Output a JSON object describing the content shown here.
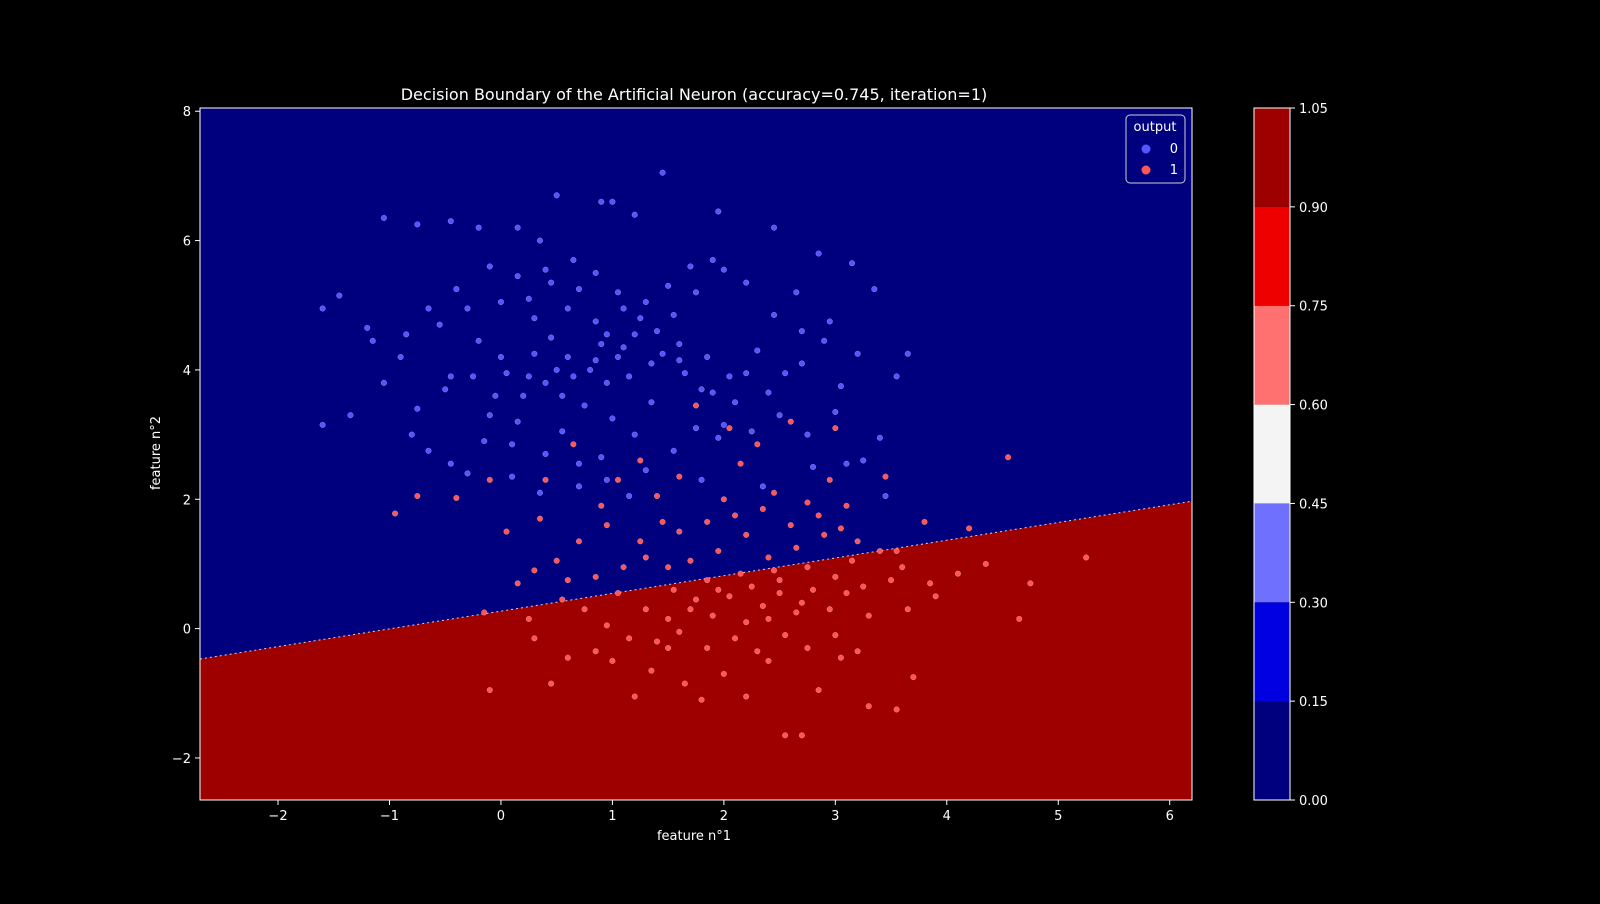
{
  "chart_data": {
    "type": "scatter",
    "title": "Decision Boundary of the Artificial Neuron (accuracy=0.745, iteration=1)",
    "xlabel": "feature n°1",
    "ylabel": "feature n°2",
    "xlim": [
      -2.7,
      6.2
    ],
    "ylim": [
      -2.65,
      8.05
    ],
    "xticks": [
      -2,
      -1,
      0,
      1,
      2,
      3,
      4,
      5,
      6
    ],
    "yticks": [
      -2,
      0,
      2,
      4,
      6,
      8
    ],
    "tick_labels_x": [
      "−2",
      "−1",
      "0",
      "1",
      "2",
      "3",
      "4",
      "5",
      "6"
    ],
    "tick_labels_y": [
      "−2",
      "0",
      "2",
      "4",
      "6",
      "8"
    ],
    "grid": false,
    "background": "#000000",
    "decision_boundary": {
      "line": [
        [
          -2.7,
          -0.47
        ],
        [
          6.2,
          1.97
        ]
      ],
      "region_above_color": "#00007f",
      "region_below_color": "#9e0000"
    },
    "legend": {
      "title": "output",
      "position": "top-right",
      "entries": [
        {
          "label": "0",
          "color": "#5555ff"
        },
        {
          "label": "1",
          "color": "#ff5555"
        }
      ]
    },
    "colorbar": {
      "levels": [
        0.0,
        0.15,
        0.3,
        0.45,
        0.6,
        0.75,
        0.9,
        1.05
      ],
      "tick_labels": [
        "0.00",
        "0.15",
        "0.30",
        "0.45",
        "0.60",
        "0.75",
        "0.90",
        "1.05"
      ],
      "colors": [
        "#00007f",
        "#0000e0",
        "#7070ff",
        "#f4f4f4",
        "#ff7070",
        "#ee0000",
        "#9e0000"
      ]
    },
    "series": [
      {
        "name": "0",
        "color": "#5555ff",
        "points": [
          [
            -1.6,
            4.95
          ],
          [
            -1.45,
            5.15
          ],
          [
            -1.2,
            4.65
          ],
          [
            -1.05,
            6.35
          ],
          [
            -0.75,
            6.25
          ],
          [
            -0.45,
            6.3
          ],
          [
            -0.2,
            6.2
          ],
          [
            0.15,
            6.2
          ],
          [
            0.35,
            6.0
          ],
          [
            0.5,
            6.7
          ],
          [
            0.9,
            6.6
          ],
          [
            1.0,
            6.6
          ],
          [
            1.2,
            6.4
          ],
          [
            1.45,
            7.05
          ],
          [
            1.95,
            6.45
          ],
          [
            2.45,
            6.2
          ],
          [
            2.85,
            5.8
          ],
          [
            3.15,
            5.65
          ],
          [
            3.35,
            5.25
          ],
          [
            3.65,
            4.25
          ],
          [
            3.55,
            3.9
          ],
          [
            3.05,
            3.75
          ],
          [
            2.7,
            4.1
          ],
          [
            2.2,
            3.95
          ],
          [
            1.8,
            3.7
          ],
          [
            1.35,
            3.5
          ],
          [
            1.2,
            3.0
          ],
          [
            0.9,
            2.65
          ],
          [
            0.55,
            3.05
          ],
          [
            0.1,
            2.85
          ],
          [
            -0.1,
            3.3
          ],
          [
            -0.5,
            3.7
          ],
          [
            -0.75,
            3.4
          ],
          [
            -1.05,
            3.8
          ],
          [
            -1.35,
            3.3
          ],
          [
            -1.6,
            3.15
          ],
          [
            -0.85,
            4.55
          ],
          [
            -0.55,
            4.7
          ],
          [
            -0.3,
            4.95
          ],
          [
            0.0,
            5.05
          ],
          [
            0.25,
            5.1
          ],
          [
            0.45,
            5.35
          ],
          [
            0.65,
            5.7
          ],
          [
            0.85,
            5.5
          ],
          [
            1.05,
            5.2
          ],
          [
            1.3,
            5.05
          ],
          [
            1.55,
            4.85
          ],
          [
            1.75,
            5.2
          ],
          [
            2.0,
            5.55
          ],
          [
            2.2,
            5.35
          ],
          [
            2.45,
            4.85
          ],
          [
            2.7,
            4.6
          ],
          [
            2.9,
            4.45
          ],
          [
            3.2,
            4.25
          ],
          [
            3.0,
            3.35
          ],
          [
            2.75,
            3.0
          ],
          [
            2.5,
            3.3
          ],
          [
            2.25,
            3.05
          ],
          [
            1.95,
            2.95
          ],
          [
            1.55,
            2.75
          ],
          [
            1.3,
            2.45
          ],
          [
            0.95,
            2.3
          ],
          [
            0.7,
            2.2
          ],
          [
            0.35,
            2.1
          ],
          [
            0.1,
            2.35
          ],
          [
            -0.3,
            2.4
          ],
          [
            -0.65,
            2.75
          ],
          [
            -0.25,
            3.9
          ],
          [
            0.05,
            3.95
          ],
          [
            0.3,
            4.25
          ],
          [
            0.45,
            4.5
          ],
          [
            0.6,
            4.2
          ],
          [
            0.8,
            4.0
          ],
          [
            0.95,
            4.55
          ],
          [
            1.1,
            4.35
          ],
          [
            1.25,
            4.8
          ],
          [
            1.4,
            4.6
          ],
          [
            1.6,
            4.4
          ],
          [
            1.85,
            4.2
          ],
          [
            2.05,
            3.9
          ],
          [
            2.3,
            4.3
          ],
          [
            0.4,
            3.8
          ],
          [
            0.55,
            3.6
          ],
          [
            0.75,
            3.45
          ],
          [
            0.95,
            3.8
          ],
          [
            1.15,
            3.9
          ],
          [
            1.35,
            4.1
          ],
          [
            1.65,
            3.95
          ],
          [
            1.9,
            3.65
          ],
          [
            2.1,
            3.5
          ],
          [
            0.2,
            3.6
          ],
          [
            0.0,
            4.2
          ],
          [
            -0.2,
            4.45
          ],
          [
            0.3,
            4.8
          ],
          [
            0.6,
            4.95
          ],
          [
            0.85,
            4.75
          ],
          [
            1.1,
            4.95
          ],
          [
            1.5,
            5.3
          ],
          [
            1.7,
            5.6
          ],
          [
            1.9,
            5.7
          ],
          [
            0.7,
            5.25
          ],
          [
            0.4,
            5.55
          ],
          [
            0.15,
            5.45
          ],
          [
            -0.1,
            5.6
          ],
          [
            -0.4,
            5.25
          ],
          [
            -0.65,
            4.95
          ],
          [
            -0.9,
            4.2
          ],
          [
            -1.15,
            4.45
          ],
          [
            -0.45,
            3.9
          ],
          [
            -0.05,
            3.6
          ],
          [
            1.2,
            4.55
          ],
          [
            1.05,
            4.2
          ],
          [
            0.9,
            4.4
          ],
          [
            0.5,
            4.0
          ],
          [
            0.25,
            3.9
          ],
          [
            1.45,
            4.25
          ],
          [
            1.6,
            4.15
          ],
          [
            2.55,
            3.95
          ],
          [
            2.4,
            3.65
          ],
          [
            2.65,
            5.2
          ],
          [
            2.95,
            4.75
          ],
          [
            3.4,
            2.95
          ],
          [
            3.25,
            2.6
          ],
          [
            3.45,
            2.05
          ],
          [
            3.1,
            2.55
          ],
          [
            2.8,
            2.5
          ],
          [
            2.35,
            2.2
          ],
          [
            1.8,
            2.3
          ],
          [
            1.15,
            2.05
          ],
          [
            0.7,
            2.55
          ],
          [
            0.4,
            2.7
          ],
          [
            0.15,
            3.2
          ],
          [
            -0.15,
            2.9
          ],
          [
            -0.45,
            2.55
          ],
          [
            -0.8,
            3.0
          ],
          [
            1.75,
            3.1
          ],
          [
            2.0,
            3.15
          ],
          [
            1.0,
            3.25
          ],
          [
            0.65,
            3.9
          ],
          [
            0.85,
            4.15
          ]
        ]
      },
      {
        "name": "1",
        "color": "#ff5555",
        "points": [
          [
            -0.95,
            1.78
          ],
          [
            -0.75,
            2.05
          ],
          [
            -0.4,
            2.02
          ],
          [
            -0.1,
            2.3
          ],
          [
            0.05,
            1.5
          ],
          [
            0.35,
            1.7
          ],
          [
            0.4,
            2.3
          ],
          [
            0.65,
            2.85
          ],
          [
            0.9,
            1.9
          ],
          [
            1.05,
            2.3
          ],
          [
            1.25,
            2.6
          ],
          [
            1.45,
            1.65
          ],
          [
            1.6,
            2.35
          ],
          [
            1.75,
            3.45
          ],
          [
            2.05,
            3.1
          ],
          [
            2.15,
            2.55
          ],
          [
            2.3,
            2.85
          ],
          [
            2.45,
            2.1
          ],
          [
            2.6,
            3.2
          ],
          [
            2.75,
            1.95
          ],
          [
            2.95,
            2.3
          ],
          [
            3.0,
            3.1
          ],
          [
            3.2,
            1.35
          ],
          [
            3.45,
            2.35
          ],
          [
            3.55,
            1.2
          ],
          [
            3.8,
            1.65
          ],
          [
            4.2,
            1.55
          ],
          [
            4.55,
            2.65
          ],
          [
            3.05,
            1.55
          ],
          [
            2.9,
            1.45
          ],
          [
            2.65,
            1.25
          ],
          [
            2.4,
            1.1
          ],
          [
            2.2,
            1.45
          ],
          [
            1.95,
            1.2
          ],
          [
            1.7,
            1.05
          ],
          [
            1.5,
            0.95
          ],
          [
            1.3,
            1.1
          ],
          [
            1.1,
            0.95
          ],
          [
            0.85,
            0.8
          ],
          [
            0.6,
            0.75
          ],
          [
            0.3,
            0.9
          ],
          [
            0.15,
            0.7
          ],
          [
            -0.15,
            0.25
          ],
          [
            -0.1,
            -0.95
          ],
          [
            0.3,
            -0.15
          ],
          [
            0.45,
            -0.85
          ],
          [
            0.6,
            -0.45
          ],
          [
            0.85,
            -0.35
          ],
          [
            1.0,
            -0.5
          ],
          [
            1.2,
            -1.05
          ],
          [
            1.35,
            -0.65
          ],
          [
            1.5,
            -0.3
          ],
          [
            1.65,
            -0.85
          ],
          [
            1.8,
            -1.1
          ],
          [
            2.0,
            -0.7
          ],
          [
            2.2,
            -1.05
          ],
          [
            2.4,
            -0.5
          ],
          [
            2.55,
            -1.65
          ],
          [
            2.7,
            -1.65
          ],
          [
            2.85,
            -0.95
          ],
          [
            3.05,
            -0.45
          ],
          [
            3.3,
            -1.2
          ],
          [
            3.55,
            -1.25
          ],
          [
            3.7,
            -0.75
          ],
          [
            3.9,
            0.5
          ],
          [
            4.1,
            0.85
          ],
          [
            4.35,
            1.0
          ],
          [
            4.65,
            0.15
          ],
          [
            5.25,
            1.1
          ],
          [
            4.75,
            0.7
          ],
          [
            1.3,
            0.3
          ],
          [
            1.5,
            0.15
          ],
          [
            1.75,
            0.45
          ],
          [
            1.9,
            0.2
          ],
          [
            2.05,
            0.5
          ],
          [
            2.2,
            0.1
          ],
          [
            2.35,
            0.35
          ],
          [
            2.5,
            0.55
          ],
          [
            2.65,
            0.25
          ],
          [
            2.8,
            0.6
          ],
          [
            2.95,
            0.3
          ],
          [
            3.1,
            0.55
          ],
          [
            3.3,
            0.2
          ],
          [
            3.5,
            0.75
          ],
          [
            3.65,
            0.3
          ],
          [
            1.15,
            -0.15
          ],
          [
            1.4,
            -0.2
          ],
          [
            1.6,
            -0.05
          ],
          [
            1.85,
            -0.3
          ],
          [
            2.1,
            -0.15
          ],
          [
            2.3,
            -0.35
          ],
          [
            2.55,
            -0.1
          ],
          [
            2.75,
            -0.3
          ],
          [
            3.0,
            -0.1
          ],
          [
            3.2,
            -0.35
          ],
          [
            0.75,
            0.3
          ],
          [
            0.95,
            0.05
          ],
          [
            0.55,
            0.45
          ],
          [
            0.25,
            0.15
          ],
          [
            1.05,
            0.55
          ],
          [
            1.55,
            0.6
          ],
          [
            1.85,
            0.75
          ],
          [
            2.15,
            0.85
          ],
          [
            2.45,
            0.9
          ],
          [
            2.75,
            0.95
          ],
          [
            3.15,
            1.05
          ],
          [
            3.4,
            1.2
          ],
          [
            1.25,
            1.35
          ],
          [
            1.6,
            1.5
          ],
          [
            1.85,
            1.65
          ],
          [
            2.1,
            1.75
          ],
          [
            2.35,
            1.85
          ],
          [
            2.6,
            1.6
          ],
          [
            2.85,
            1.75
          ],
          [
            3.1,
            1.9
          ],
          [
            0.7,
            1.35
          ],
          [
            0.5,
            1.05
          ],
          [
            0.95,
            1.6
          ],
          [
            1.4,
            2.05
          ],
          [
            2.0,
            2.0
          ],
          [
            1.95,
            0.6
          ],
          [
            2.25,
            0.65
          ],
          [
            2.5,
            0.75
          ],
          [
            2.7,
            0.4
          ],
          [
            3.0,
            0.8
          ],
          [
            3.25,
            0.65
          ],
          [
            3.6,
            0.95
          ],
          [
            3.85,
            0.7
          ],
          [
            1.7,
            0.3
          ],
          [
            2.4,
            0.15
          ]
        ]
      }
    ]
  }
}
